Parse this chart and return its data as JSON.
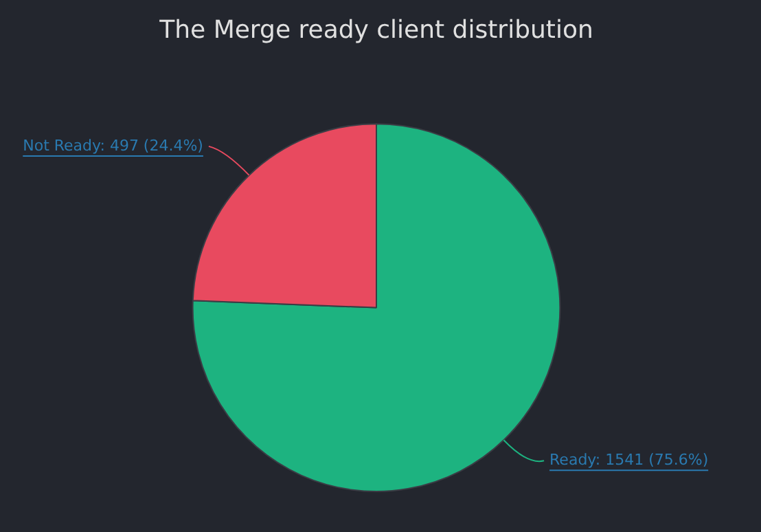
{
  "chart_data": {
    "type": "pie",
    "title": "The Merge ready client distribution",
    "categories": [
      "Ready",
      "Not Ready"
    ],
    "values": [
      1541,
      497
    ],
    "colors": [
      "#1db380",
      "#e84a5f"
    ],
    "value_labels": [
      "1541 (75.6%)",
      "497 (24.4%)"
    ],
    "legend": false
  }
}
